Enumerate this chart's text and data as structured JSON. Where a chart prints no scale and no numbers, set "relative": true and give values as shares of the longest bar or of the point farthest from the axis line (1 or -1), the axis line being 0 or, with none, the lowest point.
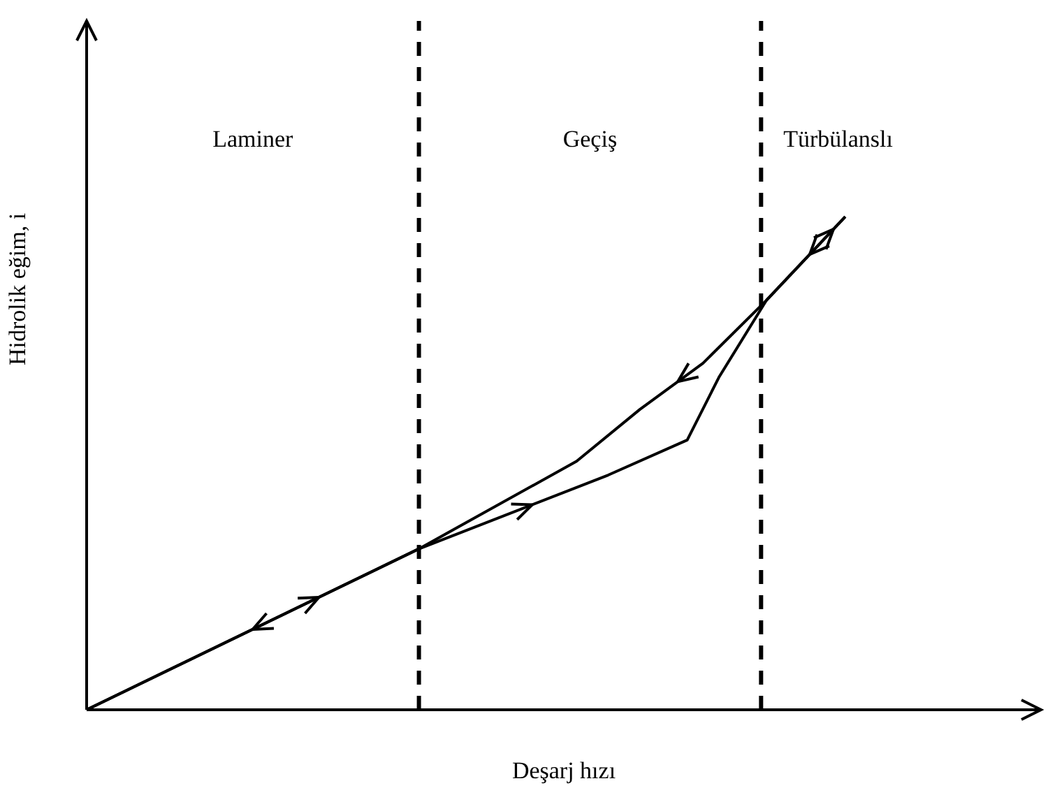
{
  "chart_data": {
    "type": "line",
    "relative": true,
    "xlabel": "Deşarj hızı",
    "ylabel": "Hidrolik  eğim, i",
    "categories": [
      null,
      null,
      null,
      null,
      null,
      null,
      null,
      null,
      null,
      null,
      null,
      null,
      null,
      null,
      null,
      null,
      null,
      null,
      null,
      null,
      null,
      null,
      null,
      null,
      null,
      null,
      null,
      null,
      null,
      null,
      null,
      null,
      null,
      null,
      null,
      null,
      null,
      null,
      null,
      null,
      null,
      null,
      null,
      null,
      null,
      null,
      null,
      null,
      null
    ],
    "series": [
      {
        "color": "#000000",
        "values": [
          0,
          null,
          null,
          null,
          null,
          null,
          null,
          null,
          null,
          null,
          null,
          null,
          null,
          null,
          null,
          null,
          null,
          null,
          null,
          null,
          null,
          0.326,
          null,
          null,
          null,
          null,
          null,
          null,
          null,
          null,
          null,
          null,
          null,
          0.476,
          null,
          null,
          null,
          null,
          0.547,
          null,
          0.674,
          null,
          null,
          0.83,
          null,
          null,
          null,
          null,
          1
        ]
      },
      {
        "color": "#000000",
        "values": [
          0,
          null,
          null,
          null,
          null,
          null,
          null,
          null,
          null,
          null,
          null,
          null,
          null,
          null,
          null,
          null,
          null,
          null,
          null,
          null,
          null,
          0.326,
          null,
          null,
          null,
          null,
          null,
          null,
          null,
          null,
          null,
          0.504,
          null,
          null,
          null,
          0.609,
          null,
          null,
          null,
          0.703,
          null,
          null,
          null,
          0.83,
          null,
          null,
          null,
          null,
          1
        ]
      }
    ],
    "annotations": [
      "Laminer",
      "Geçiş",
      "Türbülanslı"
    ],
    "grid": false
  }
}
